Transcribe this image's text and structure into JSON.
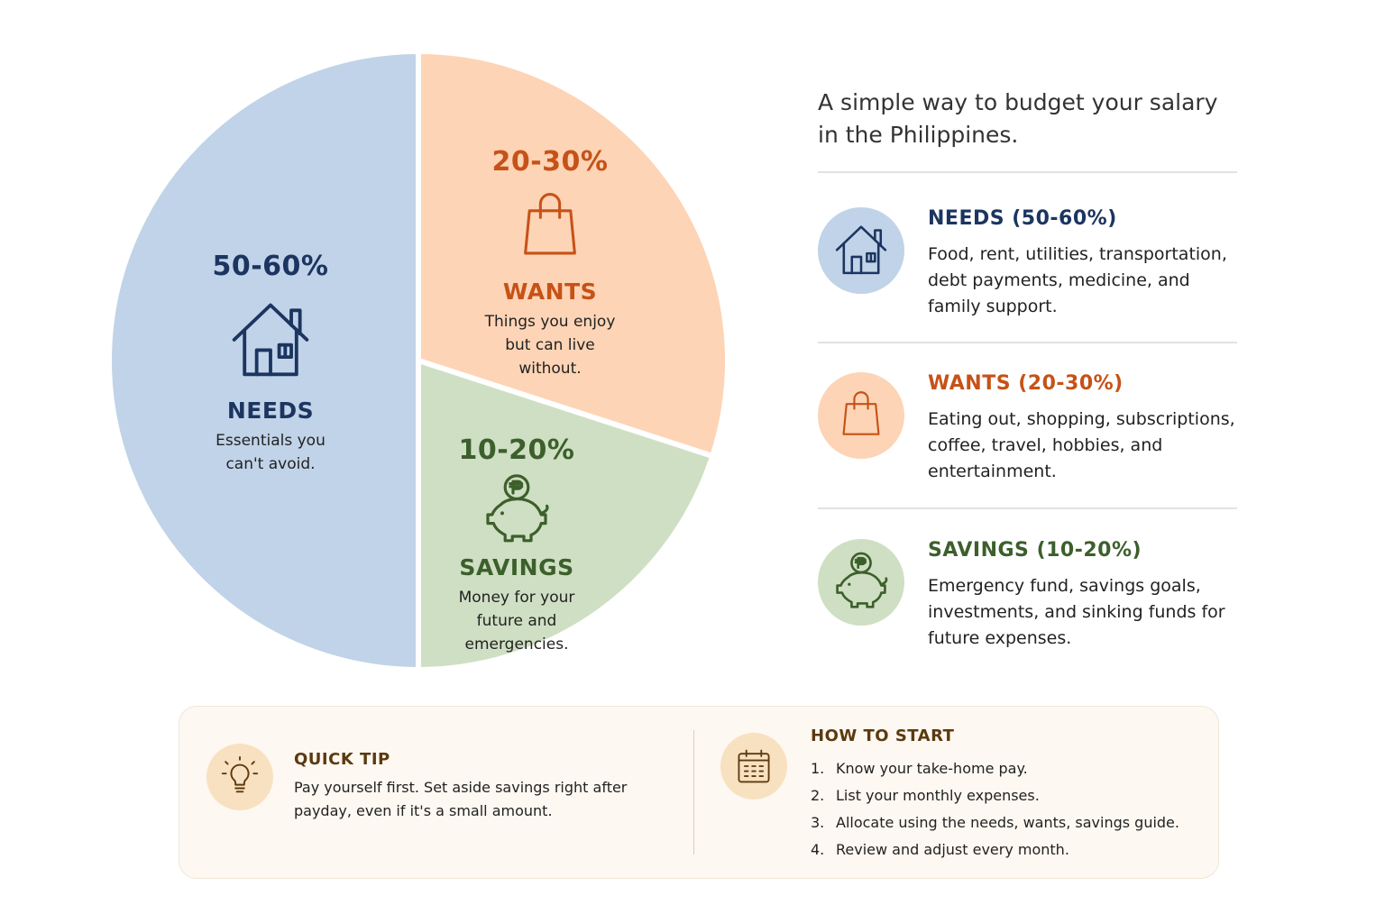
{
  "chart_data": {
    "type": "pie",
    "categories": [
      "NEEDS",
      "WANTS",
      "SAVINGS"
    ],
    "values": [
      50,
      30,
      20
    ],
    "range_labels": [
      "50-60%",
      "20-30%",
      "10-20%"
    ],
    "descriptions": [
      "Essentials you can't avoid.",
      "Things you enjoy but can live without.",
      "Money for your future and emergencies."
    ],
    "colors": [
      "#c0d3e8",
      "#fdd4b5",
      "#cfdfc3"
    ],
    "title": "",
    "legend": "right"
  },
  "colors": {
    "needs_text": "#1c3560",
    "wants_text": "#c65218",
    "savings_text": "#3c5f2c",
    "tip_text": "#5b3a10",
    "tip_icon_bg": "#f8e1c0"
  },
  "intro": {
    "text": "A simple way to budget your salary in the Philippines."
  },
  "legend": {
    "items": [
      {
        "title": "NEEDS (50-60%)",
        "description": "Food, rent, utilities, transportation, debt payments, medicine, and family support.",
        "icon": "house-icon",
        "color": "#c0d3e8"
      },
      {
        "title": "WANTS (20-30%)",
        "description": "Eating out, shopping, subscriptions, coffee, travel, hobbies, and entertainment.",
        "icon": "shopping-bag-icon",
        "color": "#fdd4b5"
      },
      {
        "title": "SAVINGS (10-20%)",
        "description": "Emergency fund, savings goals, investments, and sinking funds for future expenses.",
        "icon": "piggy-bank-icon",
        "color": "#cfdfc3"
      }
    ]
  },
  "tips": {
    "quick_tip": {
      "title": "QUICK TIP",
      "text": "Pay yourself first. Set aside savings right after payday, even if it's a small amount.",
      "icon": "lightbulb-icon"
    },
    "how_to_start": {
      "title": "HOW TO START",
      "icon": "calendar-icon",
      "steps": [
        {
          "num": "1.",
          "text": "Know your take-home pay."
        },
        {
          "num": "2.",
          "text": "List your monthly expenses."
        },
        {
          "num": "3.",
          "text": "Allocate using the needs, wants, savings guide."
        },
        {
          "num": "4.",
          "text": "Review and adjust every month."
        }
      ]
    }
  }
}
